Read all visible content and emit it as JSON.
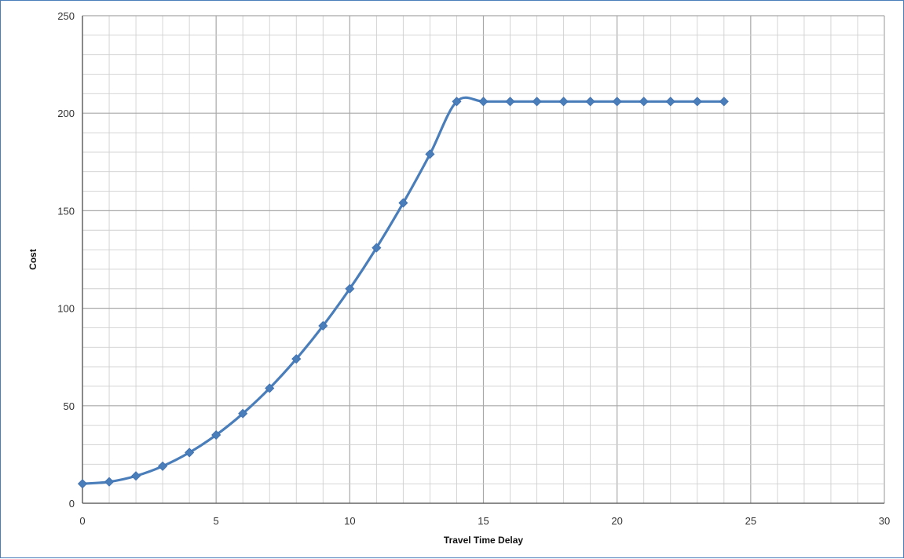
{
  "chart_data": {
    "type": "line",
    "title": "",
    "xlabel": "Travel Time Delay",
    "ylabel": "Cost",
    "xlim": [
      0,
      30
    ],
    "ylim": [
      0,
      250
    ],
    "x_ticks": [
      0,
      5,
      10,
      15,
      20,
      25,
      30
    ],
    "y_ticks": [
      0,
      50,
      100,
      150,
      200,
      250
    ],
    "grid": true,
    "legend": "none",
    "series": [
      {
        "color": "#4a7ebb",
        "marker": "diamond",
        "x": [
          0,
          1,
          2,
          3,
          4,
          5,
          6,
          7,
          8,
          9,
          10,
          11,
          12,
          13,
          14,
          15,
          16,
          17,
          18,
          19,
          20,
          21,
          22,
          23,
          24
        ],
        "y": [
          10,
          11,
          14,
          19,
          26,
          35,
          46,
          59,
          74,
          91,
          110,
          131,
          154,
          179,
          206,
          206,
          206,
          206,
          206,
          206,
          206,
          206,
          206,
          206,
          206
        ]
      }
    ]
  }
}
